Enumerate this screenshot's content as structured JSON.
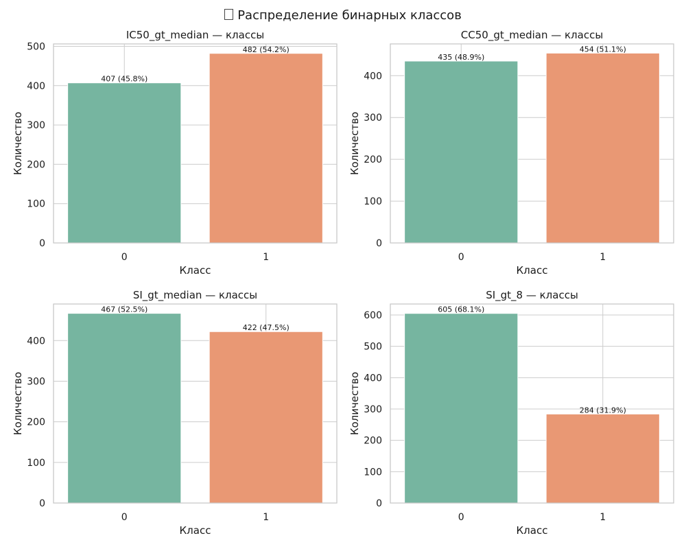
{
  "figure": {
    "suptitle": "Распределение бинарных классов",
    "title_glyph": "missing-glyph-box-icon"
  },
  "colors": {
    "class0": "#76b5a0",
    "class1": "#e99874",
    "grid": "#cccccc",
    "axis": "#c8c8c8",
    "text": "#1a1a1a"
  },
  "chart_data": [
    {
      "type": "bar",
      "title": "IC50_gt_median — классы",
      "xlabel": "Класс",
      "ylabel": "Количество",
      "categories": [
        "0",
        "1"
      ],
      "values": [
        407,
        482
      ],
      "data_labels": [
        "407 (45.8%)",
        "482 (54.2%)"
      ],
      "ylim": [
        0,
        506
      ],
      "yticks": [
        0,
        100,
        200,
        300,
        400,
        500
      ],
      "grid": true
    },
    {
      "type": "bar",
      "title": "CC50_gt_median — классы",
      "xlabel": "Класс",
      "ylabel": "Количество",
      "categories": [
        "0",
        "1"
      ],
      "values": [
        435,
        454
      ],
      "data_labels": [
        "435 (48.9%)",
        "454 (51.1%)"
      ],
      "ylim": [
        0,
        476
      ],
      "yticks": [
        0,
        100,
        200,
        300,
        400
      ],
      "grid": true
    },
    {
      "type": "bar",
      "title": "SI_gt_median — классы",
      "xlabel": "Класс",
      "ylabel": "Количество",
      "categories": [
        "0",
        "1"
      ],
      "values": [
        467,
        422
      ],
      "data_labels": [
        "467 (52.5%)",
        "422 (47.5%)"
      ],
      "ylim": [
        0,
        490
      ],
      "yticks": [
        0,
        100,
        200,
        300,
        400
      ],
      "grid": true
    },
    {
      "type": "bar",
      "title": "SI_gt_8 — классы",
      "xlabel": "Класс",
      "ylabel": "Количество",
      "categories": [
        "0",
        "1"
      ],
      "values": [
        605,
        284
      ],
      "data_labels": [
        "605 (68.1%)",
        "284 (31.9%)"
      ],
      "ylim": [
        0,
        635
      ],
      "yticks": [
        0,
        100,
        200,
        300,
        400,
        500,
        600
      ],
      "grid": true
    }
  ]
}
